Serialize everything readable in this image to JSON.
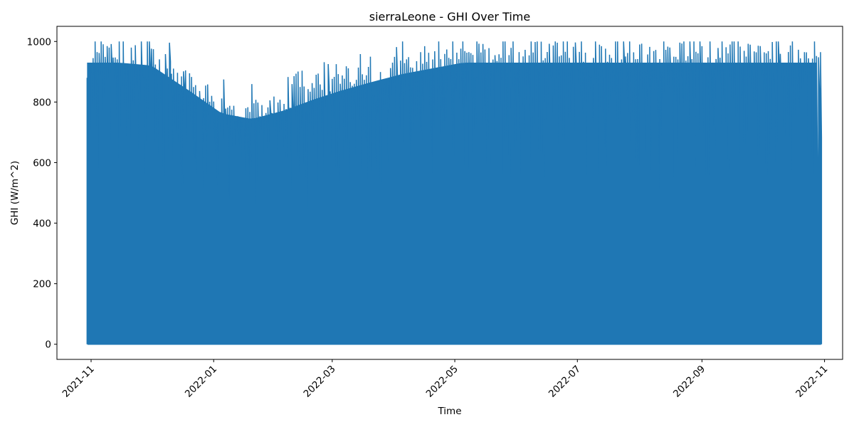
{
  "chart_data": {
    "type": "line",
    "title": "sierraLeone - GHI Over Time",
    "xlabel": "Time",
    "ylabel": "GHI (W/m^2)",
    "xlim": [
      "2021-10-15",
      "2022-11-10"
    ],
    "ylim": [
      -50,
      1050
    ],
    "x_ticks": [
      "2021-11",
      "2022-01",
      "2022-03",
      "2022-05",
      "2022-07",
      "2022-09",
      "2022-11"
    ],
    "y_ticks": [
      0,
      200,
      400,
      600,
      800,
      1000
    ],
    "grid": false,
    "legend": "none",
    "series": [
      {
        "color": "#1f77b4",
        "x_range": [
          "2021-10-30",
          "2022-10-30"
        ],
        "daily_min": 0,
        "daily_peak_dates": [
          "2021-10-30",
          "2021-11-15",
          "2021-12-01",
          "2021-12-20",
          "2022-01-05",
          "2022-01-20",
          "2022-02-05",
          "2022-02-20",
          "2022-03-05",
          "2022-03-20",
          "2022-04-05",
          "2022-04-20",
          "2022-05-05",
          "2022-05-20",
          "2022-06-05",
          "2022-06-20",
          "2022-07-05",
          "2022-07-20",
          "2022-08-05",
          "2022-08-20",
          "2022-09-05",
          "2022-09-20",
          "2022-10-05",
          "2022-10-30"
        ],
        "daily_peak_values": [
          1000,
          1000,
          990,
          900,
          820,
          800,
          830,
          870,
          900,
          930,
          960,
          980,
          1000,
          1000,
          1000,
          1000,
          1000,
          1000,
          1000,
          1000,
          1000,
          1000,
          1000,
          1000
        ]
      }
    ]
  }
}
